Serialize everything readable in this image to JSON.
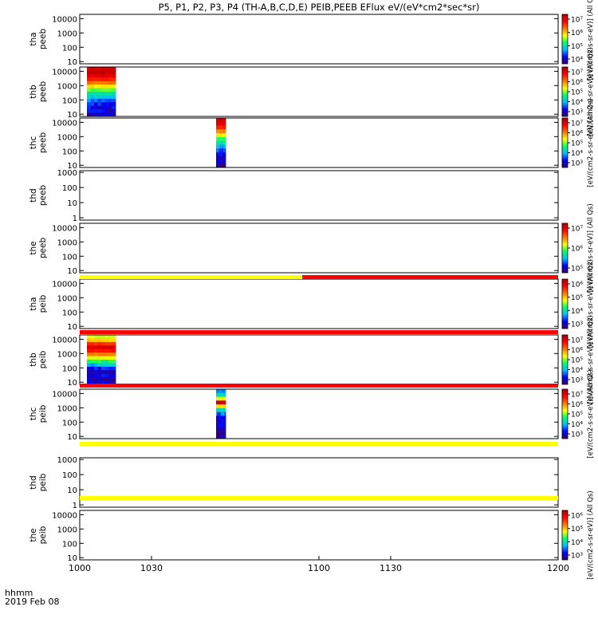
{
  "chart_data": {
    "type": "heatmap",
    "title": "P5, P1, P2, P3, P4 (TH-A,B,C,D,E) PEIB,PEEB EFlux eV/(eV*cm2*sec*sr)",
    "xlabel": "hhmm",
    "date": "2019 Feb 08",
    "xlim": [
      1000,
      1200
    ],
    "x_ticks": [
      "1000",
      "1030",
      "1100",
      "1130",
      "1200"
    ],
    "colorbar_cmap": [
      "#3a0066",
      "#0000ff",
      "#00bbff",
      "#00ff66",
      "#ffff00",
      "#ff7700",
      "#ff0000",
      "#aa0000"
    ],
    "panels": [
      {
        "id": "tha-peeb",
        "label1": "tha",
        "label2": "peeb",
        "y_ticks": [
          "10000",
          "1000",
          "100",
          "10"
        ],
        "ylim": [
          7,
          20000
        ],
        "colorbar": {
          "ticks": [
            "10⁷",
            "10⁶",
            "10⁵",
            "10⁴"
          ],
          "label": "[eV/(cm2-s-sr-eV)] (All Q"
        },
        "blocks": []
      },
      {
        "id": "thb-peeb",
        "label1": "thb",
        "label2": "peeb",
        "y_ticks": [
          "10000",
          "1000",
          "100",
          "10"
        ],
        "ylim": [
          7,
          20000
        ],
        "colorbar": {
          "ticks": [
            "10⁷",
            "10⁶",
            "10⁵",
            "10⁴",
            "10³"
          ],
          "label": "[eV/(cm2-s-sr-eV)] (All Qs)"
        },
        "blocks": [
          {
            "x": [
              1003,
              1015
            ],
            "profile": [
              0.92,
              0.95,
              0.9,
              0.82,
              0.72,
              0.6,
              0.48,
              0.38,
              0.3,
              0.22,
              0.16,
              0.12,
              0.12,
              0.1
            ]
          }
        ]
      },
      {
        "id": "thc-peeb",
        "label1": "thc",
        "label2": "peeb",
        "y_ticks": [
          "10000",
          "1000",
          "100",
          "10"
        ],
        "ylim": [
          7,
          20000
        ],
        "colorbar": {
          "ticks": [
            "10⁷",
            "10⁶",
            "10⁵",
            "10⁴",
            "10³"
          ],
          "label": "[eV/(cm2-s-sr-eV)] (All Qs)"
        },
        "blocks": [
          {
            "x": [
              1057,
              1061
            ],
            "profile": [
              0.93,
              0.9,
              0.82,
              0.7,
              0.58,
              0.45,
              0.36,
              0.28,
              0.2,
              0.14,
              0.1,
              0.08,
              0.06
            ]
          }
        ]
      },
      {
        "id": "thd-peeb",
        "label1": "thd",
        "label2": "peeb",
        "y_ticks": [
          "1000",
          "100",
          "10",
          "1"
        ],
        "ylim": [
          0.7,
          1300
        ],
        "colorbar": null,
        "blocks": []
      },
      {
        "id": "the-peeb",
        "label1": "the",
        "label2": "peeb",
        "y_ticks": [
          "10000",
          "1000",
          "100",
          "10"
        ],
        "ylim": [
          7,
          20000
        ],
        "colorbar": {
          "ticks": [
            "10⁷",
            "10⁶",
            "10⁵"
          ],
          "label": "[eV/(cm2-s-sr-eV)] (All Qs)"
        },
        "blocks": []
      },
      {
        "id": "tha-peib",
        "label1": "tha",
        "label2": "peib",
        "y_ticks": [
          "10000",
          "1000",
          "100",
          "10"
        ],
        "ylim": [
          7,
          20000
        ],
        "colorbar": {
          "ticks": [
            "10⁶",
            "10⁵",
            "10⁴",
            "10³"
          ],
          "label": "[eV/(cm2-s-sr-eV)] (All Qs)"
        },
        "blocks": []
      },
      {
        "id": "thb-peib",
        "label1": "thb",
        "label2": "peib",
        "y_ticks": [
          "10000",
          "1000",
          "100",
          "10"
        ],
        "ylim": [
          7,
          20000
        ],
        "colorbar": {
          "ticks": [
            "10⁷",
            "10⁶",
            "10⁵",
            "10⁴",
            "10³"
          ],
          "label": "[eV/(cm2-s-sr-eV)] (All Qs)"
        },
        "blocks": [
          {
            "x": [
              1003,
              1015
            ],
            "profile": [
              0.55,
              0.62,
              0.8,
              0.92,
              0.85,
              0.7,
              0.55,
              0.4,
              0.3,
              0.15,
              0.06,
              0.12,
              0.08,
              0.1
            ]
          }
        ]
      },
      {
        "id": "thc-peib",
        "label1": "thc",
        "label2": "peib",
        "y_ticks": [
          "10000",
          "1000",
          "100",
          "10"
        ],
        "ylim": [
          7,
          20000
        ],
        "colorbar": {
          "ticks": [
            "10⁷",
            "10⁶",
            "10⁵",
            "10⁴",
            "10³"
          ],
          "label": "[eV/(cm2-s-sr-eV)] (All Qs)"
        },
        "blocks": [
          {
            "x": [
              1057,
              1061
            ],
            "profile": [
              0.25,
              0.35,
              0.55,
              0.93,
              0.6,
              0.35,
              0.22,
              0.15,
              0.12,
              0.1,
              0.08,
              0.07,
              0.06
            ]
          }
        ]
      },
      {
        "id": "thd-peib",
        "label1": "thd",
        "label2": "peib",
        "y_ticks": [
          "1000",
          "100",
          "10",
          "1"
        ],
        "ylim": [
          0.7,
          1300
        ],
        "colorbar": null,
        "blocks": []
      },
      {
        "id": "the-peib",
        "label1": "the",
        "label2": "peib",
        "y_ticks": [
          "10000",
          "1000",
          "100",
          "10"
        ],
        "ylim": [
          7,
          20000
        ],
        "colorbar": {
          "ticks": [
            "10⁶",
            "10⁵",
            "10⁴",
            "10³"
          ],
          "label": "[eV/(cm2-s-sr-eV)] (All Qs)"
        },
        "blocks": []
      }
    ],
    "status_bars": [
      {
        "after_panel": "the-peeb",
        "segments": [
          {
            "x": [
              1000,
              1093
            ],
            "color": "#ffff00"
          },
          {
            "x": [
              1093,
              1200
            ],
            "color": "#ff0000"
          }
        ]
      },
      {
        "after_panel": "tha-peib",
        "segments": [
          {
            "x": [
              1000,
              1200
            ],
            "color": "#ff0000"
          }
        ]
      },
      {
        "after_panel": "thb-peib",
        "segments": [
          {
            "x": [
              1000,
              1200
            ],
            "color": "#ff0000"
          }
        ]
      },
      {
        "after_panel": "thc-peib",
        "segments": [
          {
            "x": [
              1000,
              1200
            ],
            "color": "#ffff00"
          }
        ]
      },
      {
        "after_panel": "thd-peib",
        "segments": [
          {
            "x": [
              1000,
              1200
            ],
            "color": "#ffff00"
          }
        ]
      }
    ]
  }
}
